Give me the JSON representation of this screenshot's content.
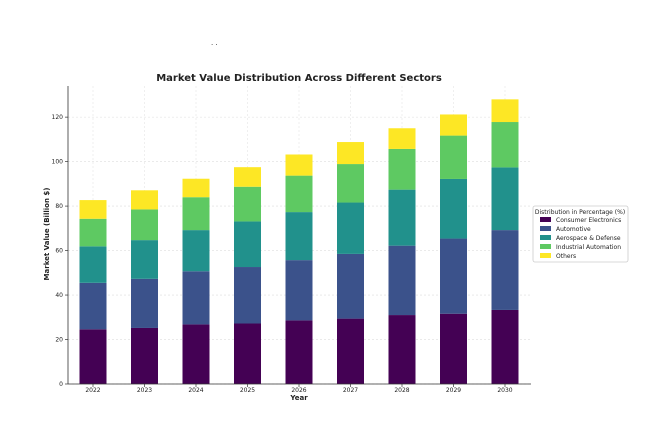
{
  "chart_data": {
    "type": "bar",
    "stacked": true,
    "title": "Market Value Distribution Across Different Sectors",
    "xlabel": "Year",
    "ylabel": "Market Value (Billion $)",
    "categories": [
      "2022",
      "2023",
      "2024",
      "2025",
      "2026",
      "2027",
      "2028",
      "2029",
      "2030"
    ],
    "ylim": [
      0,
      134
    ],
    "yticks": [
      0,
      20,
      40,
      60,
      80,
      100,
      120
    ],
    "grid": true,
    "legend": {
      "title": "Distribution in Percentage (%)",
      "placement": "center-right outside"
    },
    "series": [
      {
        "name": "Consumer Electronics",
        "color": "#440154",
        "values": [
          24.6,
          25.2,
          26.8,
          27.2,
          28.6,
          29.4,
          31.0,
          31.6,
          33.3
        ]
      },
      {
        "name": "Automotive",
        "color": "#3b528b",
        "values": [
          20.9,
          22.1,
          23.9,
          25.4,
          27.1,
          29.1,
          31.2,
          33.8,
          35.9
        ]
      },
      {
        "name": "Aerospace & Defense",
        "color": "#21918c",
        "values": [
          16.4,
          17.4,
          18.5,
          20.5,
          21.6,
          23.1,
          25.2,
          26.8,
          28.2
        ]
      },
      {
        "name": "Industrial Automation",
        "color": "#5ec962",
        "values": [
          12.4,
          13.8,
          14.8,
          15.6,
          16.4,
          17.3,
          18.3,
          19.5,
          20.4
        ]
      },
      {
        "name": "Others",
        "color": "#fde725",
        "values": [
          8.4,
          8.6,
          8.3,
          8.8,
          9.5,
          9.9,
          9.3,
          9.5,
          10.2
        ]
      }
    ]
  }
}
